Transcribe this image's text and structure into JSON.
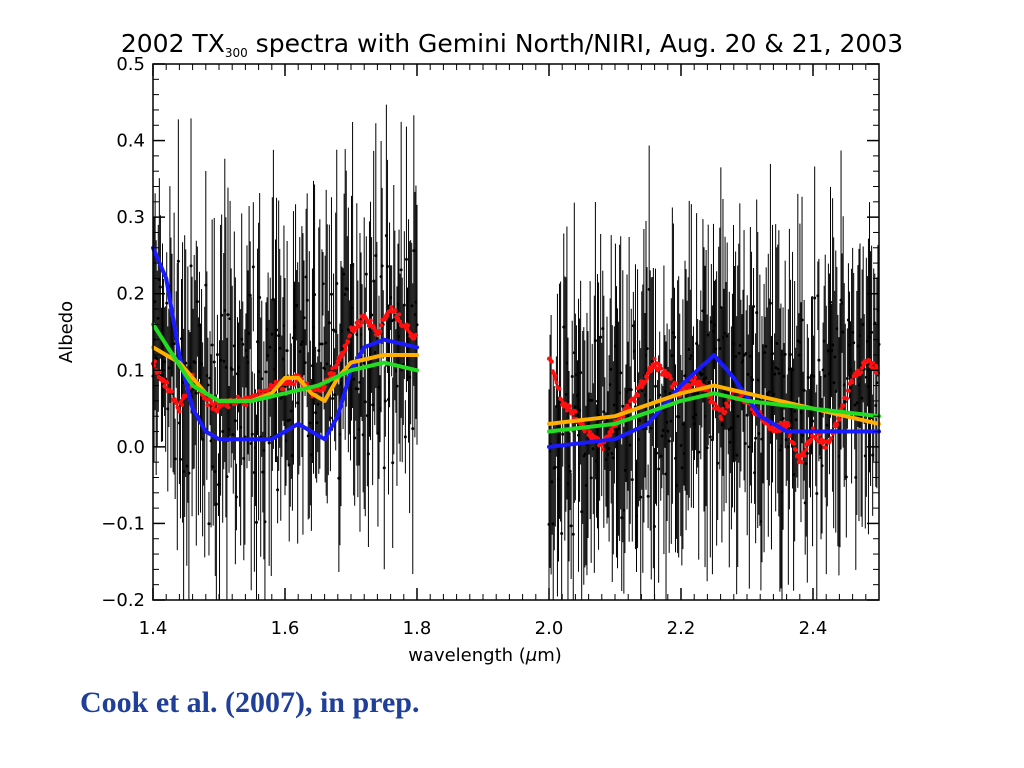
{
  "chart_data": {
    "type": "scatter",
    "title": {
      "pre": "2002 TX",
      "sub": "300",
      "post": " spectra with Gemini North/NIRI, Aug. 20 & 21, 2003"
    },
    "xlabel": {
      "pre": "wavelength (",
      "mu": "μ",
      "post": "m)"
    },
    "ylabel": "Albedo",
    "xlim": [
      1.4,
      2.5
    ],
    "ylim": [
      -0.2,
      0.5
    ],
    "xticks": [
      1.4,
      1.6,
      1.8,
      2.0,
      2.2,
      2.4
    ],
    "xtick_labels": [
      "1.4",
      "1.6",
      "1.8",
      "2.0",
      "2.2",
      "2.4"
    ],
    "yticks": [
      -0.2,
      -0.1,
      0.0,
      0.1,
      0.2,
      0.3,
      0.4,
      0.5
    ],
    "ytick_labels": [
      "−0.2",
      "−0.1",
      "0.0",
      "0.1",
      "0.2",
      "0.3",
      "0.4",
      "0.5"
    ],
    "data_segments": [
      {
        "x_range": [
          1.4,
          1.8
        ],
        "anchors": [
          [
            1.4,
            0.13
          ],
          [
            1.45,
            0.08
          ],
          [
            1.5,
            0.05
          ],
          [
            1.55,
            0.07
          ],
          [
            1.6,
            0.08
          ],
          [
            1.65,
            0.1
          ],
          [
            1.7,
            0.13
          ],
          [
            1.75,
            0.14
          ],
          [
            1.8,
            0.14
          ]
        ]
      },
      {
        "x_range": [
          2.0,
          2.5
        ],
        "anchors": [
          [
            2.0,
            0.0
          ],
          [
            2.05,
            0.02
          ],
          [
            2.1,
            0.03
          ],
          [
            2.15,
            0.05
          ],
          [
            2.2,
            0.06
          ],
          [
            2.25,
            0.07
          ],
          [
            2.3,
            0.07
          ],
          [
            2.35,
            0.06
          ],
          [
            2.4,
            0.07
          ],
          [
            2.45,
            0.1
          ],
          [
            2.5,
            0.12
          ]
        ]
      }
    ],
    "models": [
      {
        "color": "#ff1010",
        "style": "dotted",
        "segments": [
          [
            [
              1.4,
              0.11
            ],
            [
              1.42,
              0.08
            ],
            [
              1.44,
              0.05
            ],
            [
              1.46,
              0.09
            ],
            [
              1.48,
              0.06
            ],
            [
              1.5,
              0.05
            ],
            [
              1.52,
              0.06
            ],
            [
              1.55,
              0.06
            ],
            [
              1.58,
              0.08
            ],
            [
              1.6,
              0.08
            ],
            [
              1.62,
              0.09
            ],
            [
              1.64,
              0.07
            ],
            [
              1.66,
              0.08
            ],
            [
              1.68,
              0.11
            ],
            [
              1.7,
              0.15
            ],
            [
              1.72,
              0.17
            ],
            [
              1.74,
              0.15
            ],
            [
              1.76,
              0.18
            ],
            [
              1.78,
              0.16
            ],
            [
              1.8,
              0.14
            ]
          ],
          [
            [
              2.0,
              0.12
            ],
            [
              2.02,
              0.06
            ],
            [
              2.04,
              0.04
            ],
            [
              2.06,
              0.02
            ],
            [
              2.08,
              0.0
            ],
            [
              2.1,
              0.03
            ],
            [
              2.12,
              0.05
            ],
            [
              2.14,
              0.08
            ],
            [
              2.16,
              0.11
            ],
            [
              2.18,
              0.09
            ],
            [
              2.2,
              0.07
            ],
            [
              2.22,
              0.09
            ],
            [
              2.24,
              0.07
            ],
            [
              2.26,
              0.04
            ],
            [
              2.28,
              0.07
            ],
            [
              2.3,
              0.06
            ],
            [
              2.32,
              0.04
            ],
            [
              2.34,
              0.02
            ],
            [
              2.36,
              0.03
            ],
            [
              2.38,
              -0.02
            ],
            [
              2.4,
              0.02
            ],
            [
              2.42,
              0.0
            ],
            [
              2.44,
              0.04
            ],
            [
              2.46,
              0.09
            ],
            [
              2.48,
              0.11
            ],
            [
              2.5,
              0.1
            ]
          ]
        ]
      },
      {
        "color": "#1a1aff",
        "style": "solid",
        "segments": [
          [
            [
              1.4,
              0.26
            ],
            [
              1.42,
              0.22
            ],
            [
              1.44,
              0.12
            ],
            [
              1.46,
              0.05
            ],
            [
              1.48,
              0.02
            ],
            [
              1.5,
              0.01
            ],
            [
              1.55,
              0.01
            ],
            [
              1.58,
              0.01
            ],
            [
              1.6,
              0.02
            ],
            [
              1.62,
              0.03
            ],
            [
              1.64,
              0.02
            ],
            [
              1.66,
              0.01
            ],
            [
              1.68,
              0.04
            ],
            [
              1.7,
              0.1
            ],
            [
              1.72,
              0.13
            ],
            [
              1.75,
              0.14
            ],
            [
              1.8,
              0.13
            ]
          ],
          [
            [
              2.0,
              0.0
            ],
            [
              2.1,
              0.01
            ],
            [
              2.15,
              0.03
            ],
            [
              2.2,
              0.08
            ],
            [
              2.25,
              0.12
            ],
            [
              2.28,
              0.09
            ],
            [
              2.32,
              0.04
            ],
            [
              2.36,
              0.02
            ],
            [
              2.4,
              0.02
            ],
            [
              2.5,
              0.02
            ]
          ]
        ]
      },
      {
        "color": "#ffb000",
        "style": "solid",
        "segments": [
          [
            [
              1.4,
              0.13
            ],
            [
              1.44,
              0.11
            ],
            [
              1.48,
              0.07
            ],
            [
              1.5,
              0.06
            ],
            [
              1.55,
              0.06
            ],
            [
              1.58,
              0.07
            ],
            [
              1.6,
              0.09
            ],
            [
              1.62,
              0.09
            ],
            [
              1.64,
              0.07
            ],
            [
              1.66,
              0.06
            ],
            [
              1.68,
              0.09
            ],
            [
              1.7,
              0.11
            ],
            [
              1.75,
              0.12
            ],
            [
              1.8,
              0.12
            ]
          ],
          [
            [
              2.0,
              0.03
            ],
            [
              2.1,
              0.04
            ],
            [
              2.2,
              0.07
            ],
            [
              2.25,
              0.08
            ],
            [
              2.3,
              0.07
            ],
            [
              2.4,
              0.05
            ],
            [
              2.5,
              0.03
            ]
          ]
        ]
      },
      {
        "color": "#22dd22",
        "style": "solid",
        "segments": [
          [
            [
              1.4,
              0.16
            ],
            [
              1.43,
              0.12
            ],
            [
              1.46,
              0.08
            ],
            [
              1.5,
              0.06
            ],
            [
              1.55,
              0.06
            ],
            [
              1.6,
              0.07
            ],
            [
              1.65,
              0.08
            ],
            [
              1.7,
              0.1
            ],
            [
              1.75,
              0.11
            ],
            [
              1.8,
              0.1
            ]
          ],
          [
            [
              2.0,
              0.02
            ],
            [
              2.1,
              0.03
            ],
            [
              2.2,
              0.06
            ],
            [
              2.25,
              0.07
            ],
            [
              2.3,
              0.06
            ],
            [
              2.4,
              0.05
            ],
            [
              2.5,
              0.04
            ]
          ]
        ]
      }
    ]
  },
  "caption": "Cook et al. (2007), in prep.",
  "colors": {
    "data": "#000000",
    "caption": "#1f3f99"
  }
}
